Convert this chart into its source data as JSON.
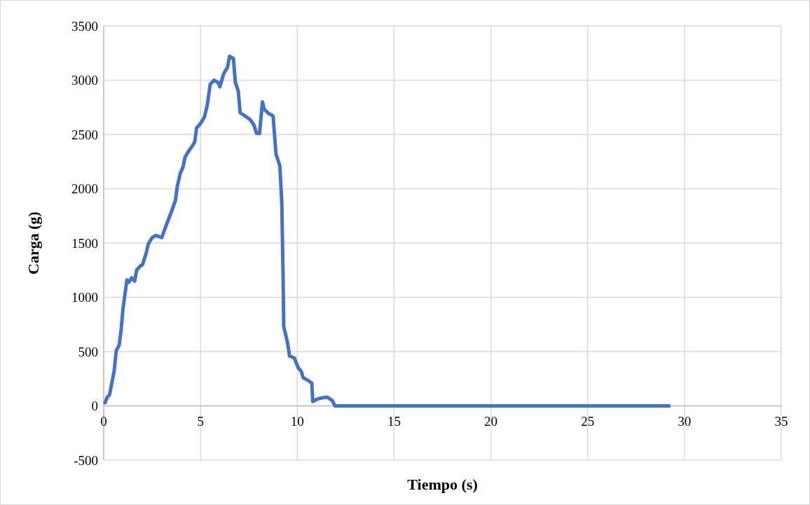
{
  "chart_data": {
    "type": "line",
    "xlabel": "Tiempo (s)",
    "ylabel": "Carga (g)",
    "xlim": [
      0,
      35
    ],
    "xticks": [
      0,
      5,
      10,
      15,
      20,
      25,
      30,
      35
    ],
    "ylim": [
      -500,
      3500
    ],
    "yticks": [
      -500,
      0,
      500,
      1000,
      1500,
      2000,
      2500,
      3000,
      3500
    ],
    "grid": true,
    "line_style": "solid",
    "marker": "none",
    "series": [
      {
        "color": "#4472c4",
        "x": [
          0.07,
          0.18,
          0.3,
          0.43,
          0.54,
          0.65,
          0.8,
          0.9,
          1.0,
          1.2,
          1.3,
          1.45,
          1.6,
          1.7,
          1.9,
          2.0,
          2.2,
          2.3,
          2.5,
          2.7,
          3.0,
          3.2,
          3.5,
          3.7,
          3.8,
          3.95,
          4.1,
          4.2,
          4.4,
          4.6,
          4.7,
          4.8,
          5.0,
          5.2,
          5.35,
          5.5,
          5.7,
          5.9,
          6.0,
          6.2,
          6.4,
          6.5,
          6.7,
          6.8,
          6.95,
          7.05,
          7.3,
          7.55,
          7.75,
          7.9,
          8.05,
          8.2,
          8.3,
          8.55,
          8.75,
          8.9,
          9.1,
          9.2,
          9.27,
          9.3,
          9.5,
          9.6,
          9.85,
          10.05,
          10.2,
          10.3,
          10.55,
          10.75,
          10.8,
          11.0,
          11.3,
          11.55,
          11.8,
          11.95,
          12.2,
          29.2
        ],
        "values": [
          29,
          80,
          100,
          220,
          320,
          510,
          560,
          700,
          900,
          1160,
          1140,
          1180,
          1150,
          1250,
          1290,
          1300,
          1410,
          1490,
          1550,
          1570,
          1550,
          1650,
          1790,
          1890,
          2020,
          2140,
          2200,
          2290,
          2350,
          2400,
          2430,
          2560,
          2600,
          2660,
          2770,
          2960,
          3000,
          2980,
          2940,
          3060,
          3120,
          3220,
          3200,
          2980,
          2900,
          2700,
          2670,
          2640,
          2590,
          2510,
          2510,
          2800,
          2730,
          2690,
          2670,
          2320,
          2210,
          1870,
          1160,
          730,
          580,
          460,
          440,
          350,
          320,
          260,
          235,
          210,
          40,
          60,
          75,
          80,
          50,
          0,
          0,
          0
        ]
      }
    ]
  }
}
